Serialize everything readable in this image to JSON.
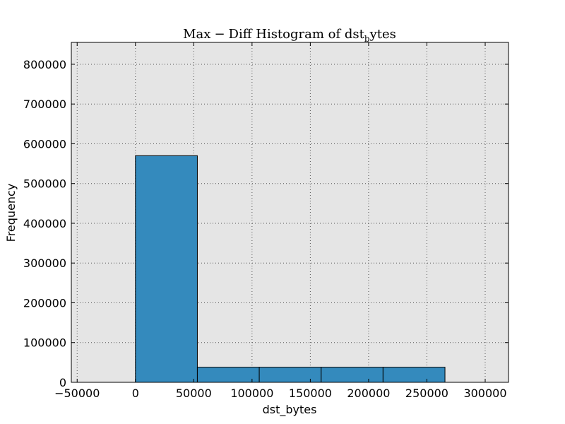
{
  "chart_data": {
    "type": "bar",
    "title": {
      "prefix": "Max",
      "minus": "−",
      "middle": "Diff Histogram of dst",
      "subscript": "b",
      "suffix": "ytes"
    },
    "xlabel": "dst_bytes",
    "ylabel": "Frequency",
    "xlim": [
      -55000,
      320000
    ],
    "ylim": [
      0,
      855000
    ],
    "xticks": [
      -50000,
      0,
      50000,
      100000,
      150000,
      200000,
      250000,
      300000
    ],
    "xtick_labels": [
      "−50000",
      "0",
      "50000",
      "100000",
      "150000",
      "200000",
      "250000",
      "300000"
    ],
    "yticks": [
      0,
      100000,
      200000,
      300000,
      400000,
      500000,
      600000,
      700000,
      800000
    ],
    "ytick_labels": [
      "0",
      "100000",
      "200000",
      "300000",
      "400000",
      "500000",
      "600000",
      "700000",
      "800000"
    ],
    "bins": [
      {
        "x0": 0,
        "x1": 53100,
        "value": 570000
      },
      {
        "x0": 53100,
        "x1": 106200,
        "value": 38000
      },
      {
        "x0": 106200,
        "x1": 159300,
        "value": 38000
      },
      {
        "x0": 159300,
        "x1": 212400,
        "value": 38000
      },
      {
        "x0": 212400,
        "x1": 265500,
        "value": 38000
      }
    ],
    "grid": true,
    "colors": {
      "bar": "#348abd",
      "plot_bg": "#e5e5e5",
      "grid": "#555555",
      "edge": "#000000"
    }
  }
}
